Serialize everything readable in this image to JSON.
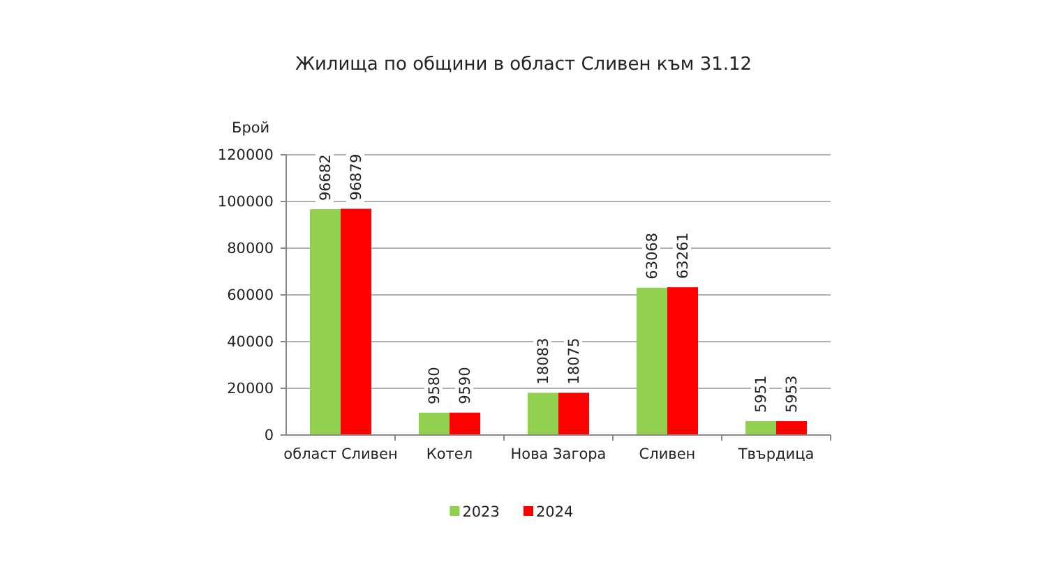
{
  "chart_data": {
    "type": "bar",
    "title": "Жилища по общини в област Сливен към 31.12",
    "ylabel": "Брой",
    "categories": [
      "област Сливен",
      "Котел",
      "Нова Загора",
      "Сливен",
      "Твърдица"
    ],
    "series": [
      {
        "name": "2023",
        "color": "#92d050",
        "values": [
          96682,
          9580,
          18083,
          63068,
          5951
        ]
      },
      {
        "name": "2024",
        "color": "#ff0000",
        "values": [
          96879,
          9590,
          18075,
          63261,
          5953
        ]
      }
    ],
    "ylim": [
      0,
      120000
    ],
    "yticks": [
      0,
      20000,
      40000,
      60000,
      80000,
      100000,
      120000
    ],
    "grid": "y",
    "legend": "bottom",
    "data_labels": true
  }
}
